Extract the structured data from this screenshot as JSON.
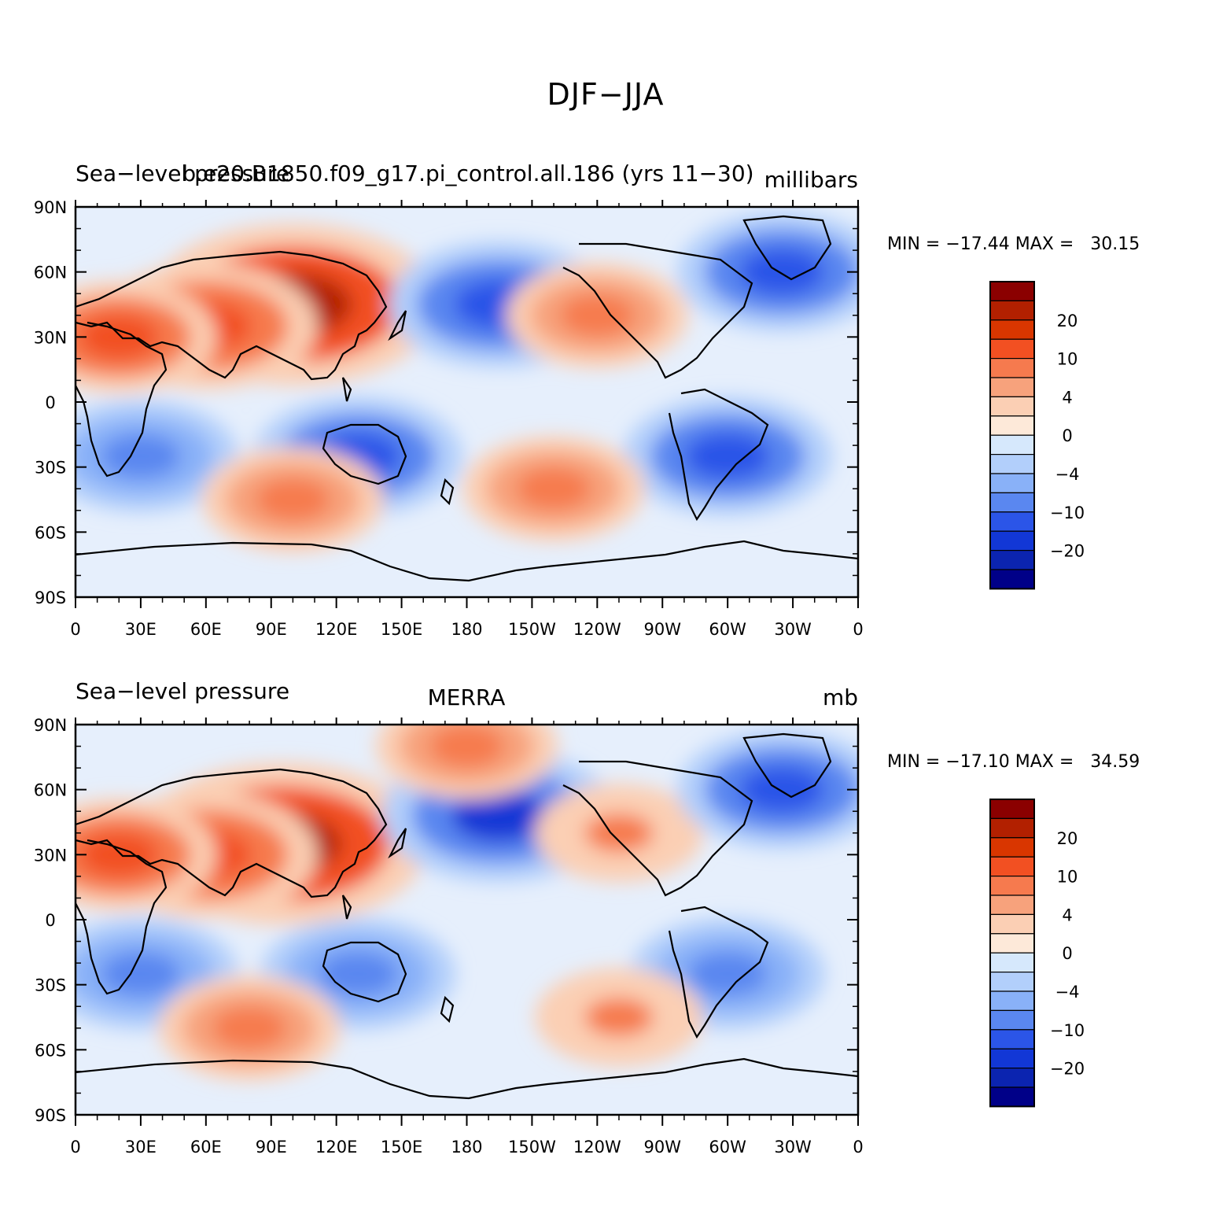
{
  "figure": {
    "title": "DJF−JJA"
  },
  "panels": [
    {
      "id": "model",
      "left_label": "Sea−level pressure",
      "center_label": "b.e20.B1850.f09_g17.pi_control.all.186 (yrs 11−30)",
      "units": "millibars",
      "stats": "MIN = −17.44 MAX =   30.15",
      "min": -17.44,
      "max": 30.15
    },
    {
      "id": "merra",
      "left_label": "Sea−level pressure",
      "center_label": "MERRA",
      "units": "mb",
      "stats": "MIN = −17.10 MAX =   34.59",
      "min": -17.1,
      "max": 34.59
    }
  ],
  "axes": {
    "lat_labels": [
      "90N",
      "60N",
      "30N",
      "0",
      "30S",
      "60S",
      "90S"
    ],
    "lon_labels": [
      "0",
      "30E",
      "60E",
      "90E",
      "120E",
      "150E",
      "180",
      "150W",
      "120W",
      "90W",
      "60W",
      "30W",
      "0"
    ]
  },
  "colorbar": {
    "colors": [
      "#8b0000",
      "#b22000",
      "#d93600",
      "#f25022",
      "#f67a4e",
      "#f7a27c",
      "#fbcfb4",
      "#fde9d9",
      "#d6e8fc",
      "#b2cffb",
      "#89b1f8",
      "#5a87f0",
      "#2b55e8",
      "#1237d6",
      "#0b24b0",
      "#000088"
    ],
    "labels": [
      "20",
      "10",
      "4",
      "0",
      "−4",
      "−10",
      "−20"
    ]
  },
  "chart_data": [
    {
      "type": "heatmap",
      "title": "Sea−level pressure",
      "subtitle": "b.e20.B1850.f09_g17.pi_control.all.186 (yrs 11−30)",
      "units": "millibars",
      "xlim": [
        0,
        360
      ],
      "ylim": [
        -90,
        90
      ],
      "min": -17.44,
      "max": 30.15,
      "regions": [
        {
          "lon": 100,
          "lat": 45,
          "value": 24
        },
        {
          "lon": 60,
          "lat": 35,
          "value": 14
        },
        {
          "lon": 20,
          "lat": 30,
          "value": 10
        },
        {
          "lon": 195,
          "lat": 45,
          "value": -14
        },
        {
          "lon": 240,
          "lat": 40,
          "value": 8
        },
        {
          "lon": 325,
          "lat": 60,
          "value": -12
        },
        {
          "lon": 30,
          "lat": -25,
          "value": -10
        },
        {
          "lon": 130,
          "lat": -25,
          "value": -12
        },
        {
          "lon": 300,
          "lat": -25,
          "value": -12
        },
        {
          "lon": 100,
          "lat": -45,
          "value": 8
        },
        {
          "lon": 220,
          "lat": -40,
          "value": 8
        }
      ]
    },
    {
      "type": "heatmap",
      "title": "Sea−level pressure",
      "subtitle": "MERRA",
      "units": "mb",
      "xlim": [
        0,
        360
      ],
      "ylim": [
        -90,
        90
      ],
      "min": -17.1,
      "max": 34.59,
      "regions": [
        {
          "lon": 95,
          "lat": 35,
          "value": 24
        },
        {
          "lon": 60,
          "lat": 30,
          "value": 14
        },
        {
          "lon": 20,
          "lat": 30,
          "value": 10
        },
        {
          "lon": 195,
          "lat": 48,
          "value": -16
        },
        {
          "lon": 180,
          "lat": 80,
          "value": 8
        },
        {
          "lon": 250,
          "lat": 40,
          "value": 6
        },
        {
          "lon": 325,
          "lat": 60,
          "value": -12
        },
        {
          "lon": 30,
          "lat": -25,
          "value": -10
        },
        {
          "lon": 130,
          "lat": -25,
          "value": -10
        },
        {
          "lon": 300,
          "lat": -25,
          "value": -10
        },
        {
          "lon": 80,
          "lat": -50,
          "value": 8
        },
        {
          "lon": 250,
          "lat": -45,
          "value": 6
        }
      ]
    }
  ]
}
